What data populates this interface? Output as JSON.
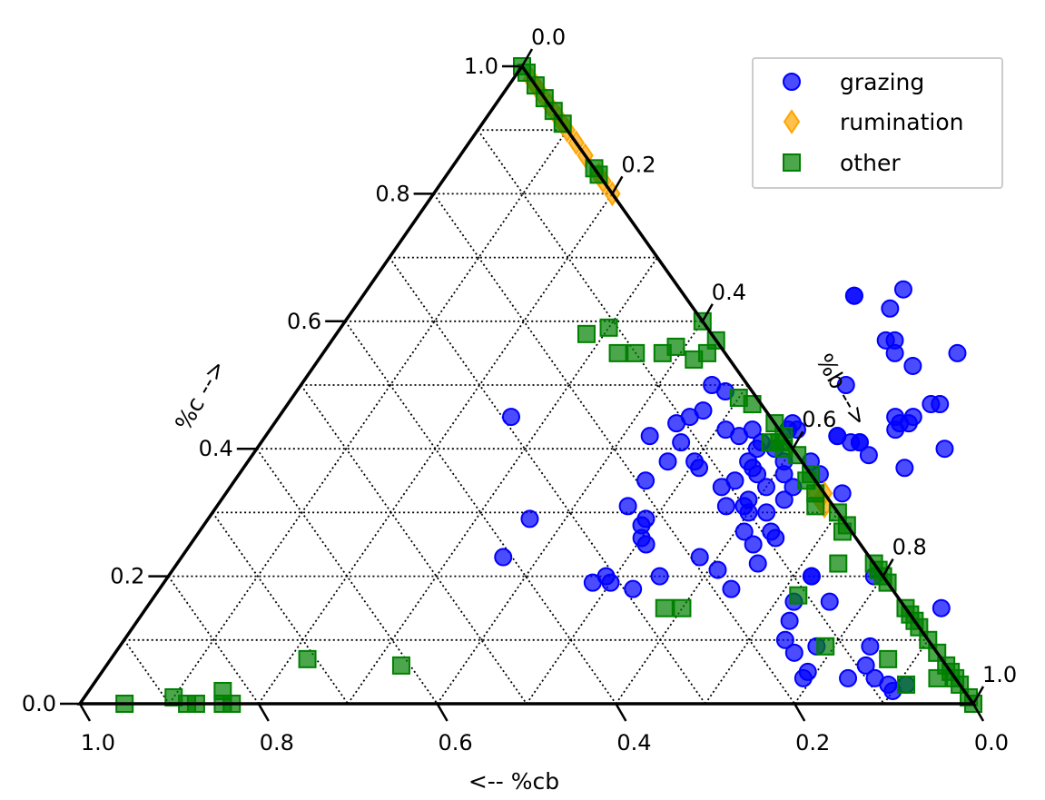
{
  "chart_data": {
    "type": "scatter",
    "subtype": "ternary",
    "axes": {
      "left": {
        "label": "%c -->",
        "ticks": [
          "0.0",
          "0.2",
          "0.4",
          "0.6",
          "0.8",
          "1.0"
        ]
      },
      "right": {
        "label": "%b -->",
        "ticks": [
          "0.0",
          "0.2",
          "0.4",
          "0.6",
          "0.8",
          "1.0"
        ]
      },
      "bottom": {
        "label": "<-- %cb",
        "ticks": [
          "1.0",
          "0.8",
          "0.6",
          "0.4",
          "0.2",
          "0.0"
        ]
      }
    },
    "grid": true,
    "grid_step": 0.1,
    "legend": {
      "position": "top-right"
    },
    "series": [
      {
        "name": "grazing",
        "marker": "circle",
        "color": "#0000ff",
        "points": [
          [
            0.46,
            0.5
          ],
          [
            0.47,
            0.46
          ],
          [
            0.46,
            0.45
          ],
          [
            0.45,
            0.44
          ],
          [
            0.48,
            0.49
          ],
          [
            0.51,
            0.43
          ],
          [
            0.47,
            0.38
          ],
          [
            0.5,
            0.38
          ],
          [
            0.46,
            0.35
          ],
          [
            0.47,
            0.41
          ],
          [
            0.56,
            0.4
          ],
          [
            0.57,
            0.37
          ],
          [
            0.53,
            0.42
          ],
          [
            0.54,
            0.43
          ],
          [
            0.6,
            0.34
          ],
          [
            0.6,
            0.3
          ],
          [
            0.62,
            0.3
          ],
          [
            0.61,
            0.27
          ],
          [
            0.63,
            0.25
          ],
          [
            0.58,
            0.23
          ],
          [
            0.51,
            0.25
          ],
          [
            0.49,
            0.2
          ],
          [
            0.48,
            0.19
          ],
          [
            0.5,
            0.19
          ],
          [
            0.53,
            0.18
          ],
          [
            0.55,
            0.2
          ],
          [
            0.5,
            0.26
          ],
          [
            0.55,
            0.34
          ],
          [
            0.58,
            0.36
          ],
          [
            0.6,
            0.38
          ],
          [
            0.63,
            0.38
          ],
          [
            0.65,
            0.36
          ],
          [
            0.69,
            0.33
          ],
          [
            0.69,
            0.39
          ],
          [
            0.7,
            0.44
          ],
          [
            0.72,
            0.47
          ],
          [
            0.73,
            0.47
          ],
          [
            0.66,
            0.41
          ],
          [
            0.67,
            0.41
          ],
          [
            0.69,
            0.45
          ],
          [
            0.71,
            0.45
          ],
          [
            0.71,
            0.55
          ],
          [
            0.62,
            0.57
          ],
          [
            0.6,
            0.62
          ],
          [
            0.6,
            0.65
          ],
          [
            0.63,
            0.57
          ],
          [
            0.55,
            0.64
          ],
          [
            0.55,
            0.64
          ],
          [
            0.56,
            0.35
          ],
          [
            0.65,
            0.26
          ],
          [
            0.65,
            0.22
          ],
          [
            0.71,
            0.44
          ],
          [
            0.64,
            0.42
          ],
          [
            0.58,
            0.4
          ],
          [
            0.56,
            0.38
          ],
          [
            0.63,
            0.34
          ],
          [
            0.63,
            0.32
          ],
          [
            0.61,
            0.36
          ],
          [
            0.59,
            0.32
          ],
          [
            0.57,
            0.31
          ],
          [
            0.59,
            0.31
          ],
          [
            0.49,
            0.29
          ],
          [
            0.49,
            0.28
          ],
          [
            0.61,
            0.21
          ],
          [
            0.64,
            0.27
          ],
          [
            0.64,
            0.18
          ],
          [
            0.72,
            0.2
          ],
          [
            0.72,
            0.16
          ],
          [
            0.73,
            0.13
          ],
          [
            0.74,
            0.1
          ],
          [
            0.76,
            0.08
          ],
          [
            0.78,
            0.09
          ],
          [
            0.79,
            0.05
          ],
          [
            0.79,
            0.04
          ],
          [
            0.85,
            0.06
          ],
          [
            0.84,
            0.04
          ],
          [
            0.87,
            0.04
          ],
          [
            0.89,
            0.03
          ],
          [
            0.9,
            0.02
          ],
          [
            0.91,
            0.03
          ],
          [
            0.89,
            0.15
          ],
          [
            0.79,
            0.2
          ],
          [
            0.76,
            0.16
          ],
          [
            0.72,
            0.2
          ],
          [
            0.84,
            0.09
          ],
          [
            0.64,
            0.42
          ],
          [
            0.67,
            0.41
          ],
          [
            0.59,
            0.43
          ],
          [
            0.58,
            0.43
          ],
          [
            0.74,
            0.37
          ],
          [
            0.77,
            0.4
          ],
          [
            0.7,
            0.43
          ],
          [
            0.61,
            0.5
          ],
          [
            0.58,
            0.44
          ],
          [
            0.67,
            0.53
          ],
          [
            0.64,
            0.55
          ],
          [
            0.56,
            0.41
          ],
          [
            0.51,
            0.37
          ],
          [
            0.43,
            0.42
          ],
          [
            0.46,
            0.31
          ],
          [
            0.36,
            0.23
          ],
          [
            0.36,
            0.29
          ],
          [
            0.26,
            0.45
          ]
        ]
      },
      {
        "name": "rumination",
        "marker": "diamond",
        "color": "#ffa500",
        "points": [
          [
            0.02,
            0.98
          ],
          [
            0.03,
            0.97
          ],
          [
            0.04,
            0.96
          ],
          [
            0.06,
            0.94
          ],
          [
            0.08,
            0.92
          ],
          [
            0.09,
            0.91
          ],
          [
            0.1,
            0.9
          ],
          [
            0.12,
            0.88
          ],
          [
            0.14,
            0.86
          ],
          [
            0.17,
            0.83
          ],
          [
            0.18,
            0.82
          ],
          [
            0.2,
            0.8
          ],
          [
            0.66,
            0.33
          ],
          [
            0.67,
            0.32
          ],
          [
            0.68,
            0.31
          ],
          [
            0.67,
            0.33
          ]
        ]
      },
      {
        "name": "other",
        "marker": "square",
        "color": "#008000",
        "points": [
          [
            0.0,
            1.0
          ],
          [
            0.01,
            0.99
          ],
          [
            0.03,
            0.97
          ],
          [
            0.05,
            0.95
          ],
          [
            0.07,
            0.93
          ],
          [
            0.09,
            0.91
          ],
          [
            0.16,
            0.84
          ],
          [
            0.17,
            0.83
          ],
          [
            0.4,
            0.6
          ],
          [
            0.43,
            0.57
          ],
          [
            0.5,
            0.48
          ],
          [
            0.52,
            0.47
          ],
          [
            0.56,
            0.44
          ],
          [
            0.58,
            0.42
          ],
          [
            0.58,
            0.41
          ],
          [
            0.59,
            0.4
          ],
          [
            0.61,
            0.39
          ],
          [
            0.64,
            0.36
          ],
          [
            0.66,
            0.33
          ],
          [
            0.67,
            0.31
          ],
          [
            0.7,
            0.3
          ],
          [
            0.72,
            0.28
          ],
          [
            0.72,
            0.27
          ],
          [
            0.78,
            0.22
          ],
          [
            0.79,
            0.21
          ],
          [
            0.8,
            0.2
          ],
          [
            0.81,
            0.19
          ],
          [
            0.85,
            0.15
          ],
          [
            0.86,
            0.14
          ],
          [
            0.87,
            0.13
          ],
          [
            0.88,
            0.12
          ],
          [
            0.9,
            0.1
          ],
          [
            0.92,
            0.08
          ],
          [
            0.94,
            0.06
          ],
          [
            0.95,
            0.05
          ],
          [
            0.96,
            0.04
          ],
          [
            0.97,
            0.03
          ],
          [
            0.99,
            0.01
          ],
          [
            1.0,
            0.0
          ],
          [
            0.94,
            0.04
          ],
          [
            0.87,
            0.07
          ],
          [
            0.79,
            0.09
          ],
          [
            0.72,
            0.17
          ],
          [
            0.74,
            0.22
          ],
          [
            0.22,
            0.07
          ],
          [
            0.91,
            0.03
          ],
          [
            0.6,
            0.15
          ],
          [
            0.58,
            0.15
          ],
          [
            0.33,
            0.06
          ],
          [
            0.15,
            0.02
          ],
          [
            0.1,
            0.01
          ],
          [
            0.05,
            0.0
          ],
          [
            0.16,
            0.0
          ],
          [
            0.17,
            0.0
          ],
          [
            0.12,
            0.0
          ],
          [
            0.13,
            0.0
          ],
          [
            0.3,
            0.59
          ],
          [
            0.28,
            0.58
          ],
          [
            0.33,
            0.55
          ],
          [
            0.35,
            0.55
          ],
          [
            0.57,
            0.41
          ],
          [
            0.64,
            0.35
          ],
          [
            0.42,
            0.54
          ],
          [
            0.39,
            0.56
          ],
          [
            0.38,
            0.55
          ],
          [
            0.43,
            0.55
          ]
        ]
      }
    ]
  }
}
